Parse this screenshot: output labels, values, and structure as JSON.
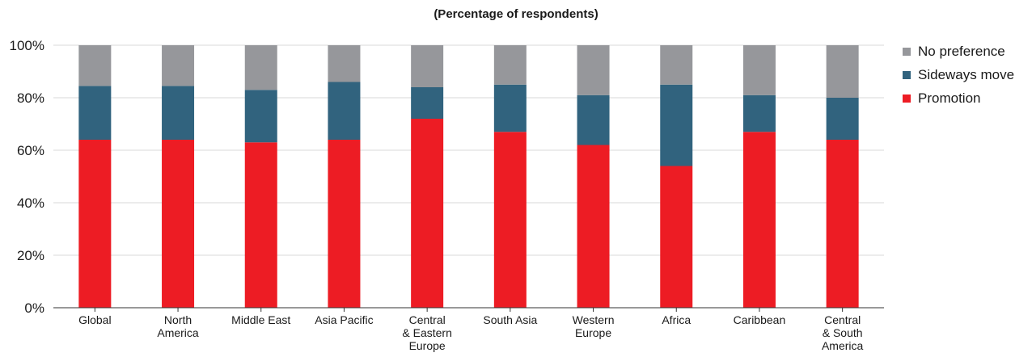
{
  "chart_data": {
    "type": "bar",
    "stacked": true,
    "subtitle": "(Percentage of respondents)",
    "categories": [
      [
        "Global"
      ],
      [
        "North",
        "America"
      ],
      [
        "Middle East"
      ],
      [
        "Asia Pacific"
      ],
      [
        "Central",
        "& Eastern",
        "Europe"
      ],
      [
        "South Asia"
      ],
      [
        "Western",
        "Europe"
      ],
      [
        "Africa"
      ],
      [
        "Caribbean"
      ],
      [
        "Central",
        "& South",
        "America"
      ]
    ],
    "series": [
      {
        "name": "Promotion",
        "color": "#ed1c24",
        "values": [
          64,
          64,
          63,
          64,
          72,
          67,
          62,
          54,
          67,
          64
        ]
      },
      {
        "name": "Sideways move",
        "color": "#31637e",
        "values": [
          20.5,
          20.5,
          20,
          22,
          12,
          18,
          19,
          31,
          14,
          16
        ]
      },
      {
        "name": "No preference",
        "color": "#96979b",
        "values": [
          15.5,
          15.5,
          17,
          14,
          16,
          15,
          19,
          15,
          19,
          20
        ]
      }
    ],
    "legend_order": [
      "No preference",
      "Sideways move",
      "Promotion"
    ],
    "yticks": [
      "0%",
      "20%",
      "40%",
      "60%",
      "80%",
      "100%"
    ],
    "ylim": [
      0,
      100
    ],
    "grid": true,
    "legend_position": "right"
  }
}
